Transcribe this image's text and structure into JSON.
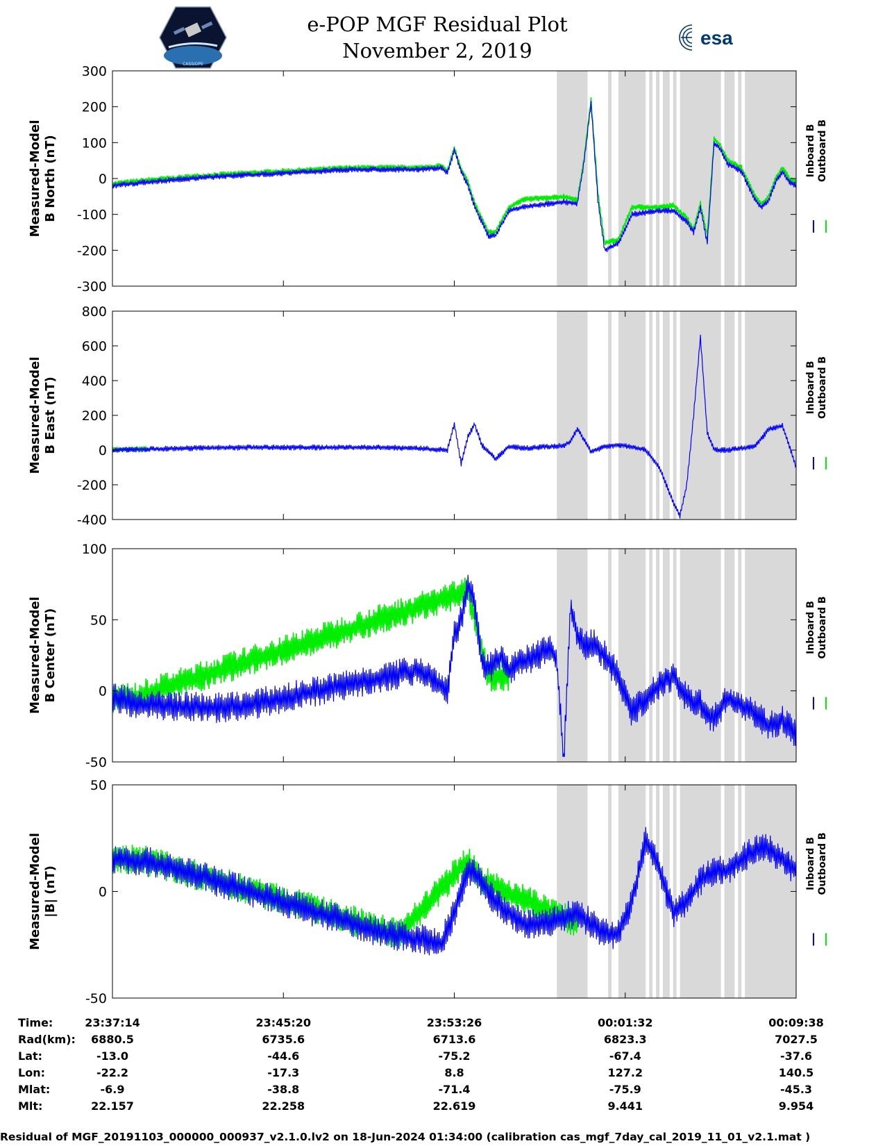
{
  "header": {
    "title": "e-POP MGF Residual Plot",
    "subtitle": "November 2, 2019",
    "logo_left_text": "CASSIOPE",
    "logo_right_text": "esa"
  },
  "colors": {
    "inboard": "#0000ff",
    "outboard": "#00ee00",
    "shade": "#d9d9d9"
  },
  "legend": {
    "inboard": "Inboard B",
    "outboard": "Outboard B",
    "placement": "right"
  },
  "chart_data": [
    {
      "type": "line",
      "ylabel": [
        "Measured-Model",
        "B North (nT)"
      ],
      "ylim": [
        -300,
        300
      ],
      "yticks": [
        300,
        200,
        100,
        0,
        -100,
        -200,
        -300
      ],
      "series": [
        {
          "name": "Inboard B",
          "x": [
            0,
            0.05,
            0.15,
            0.25,
            0.35,
            0.45,
            0.48,
            0.49,
            0.5,
            0.51,
            0.52,
            0.53,
            0.55,
            0.56,
            0.58,
            0.6,
            0.62,
            0.64,
            0.66,
            0.68,
            0.69,
            0.7,
            0.71,
            0.72,
            0.74,
            0.76,
            0.78,
            0.8,
            0.82,
            0.84,
            0.85,
            0.86,
            0.87,
            0.88,
            0.89,
            0.9,
            0.92,
            0.94,
            0.95,
            0.96,
            0.97,
            0.98,
            0.99,
            1
          ],
          "values": [
            -20,
            -10,
            5,
            15,
            25,
            25,
            30,
            15,
            80,
            20,
            -20,
            -80,
            -160,
            -160,
            -90,
            -80,
            -75,
            -70,
            -65,
            -70,
            50,
            210,
            -60,
            -200,
            -180,
            -100,
            -95,
            -90,
            -90,
            -120,
            -150,
            -80,
            -180,
            100,
            80,
            40,
            20,
            -60,
            -80,
            -60,
            -10,
            20,
            -10,
            -20
          ]
        },
        {
          "name": "Outboard B",
          "x": [
            0,
            0.05,
            0.15,
            0.25,
            0.35,
            0.45,
            0.48,
            0.49,
            0.5,
            0.51,
            0.52,
            0.53,
            0.55,
            0.56,
            0.58,
            0.6,
            0.62,
            0.64,
            0.66,
            0.68,
            0.69,
            0.7,
            0.71,
            0.72,
            0.74,
            0.76,
            0.78,
            0.8,
            0.82,
            0.84,
            0.85,
            0.86,
            0.87,
            0.88,
            0.89,
            0.9,
            0.92,
            0.94,
            0.95,
            0.96,
            0.97,
            0.98,
            0.99,
            1
          ],
          "values": [
            -15,
            -5,
            10,
            20,
            30,
            30,
            35,
            20,
            85,
            25,
            -10,
            -70,
            -150,
            -150,
            -80,
            -60,
            -55,
            -55,
            -50,
            -60,
            60,
            220,
            -40,
            -180,
            -170,
            -80,
            -80,
            -80,
            -75,
            -110,
            -140,
            -70,
            -160,
            110,
            90,
            50,
            30,
            -50,
            -70,
            -50,
            0,
            30,
            0,
            -10
          ]
        }
      ],
      "shading": [
        [
          0.65,
          0.695
        ],
        [
          0.725,
          0.73
        ],
        [
          0.74,
          0.78
        ],
        [
          0.785,
          0.79
        ],
        [
          0.795,
          0.8
        ],
        [
          0.805,
          0.815
        ],
        [
          0.82,
          0.825
        ],
        [
          0.83,
          0.89
        ],
        [
          0.895,
          0.91
        ],
        [
          0.915,
          0.92
        ],
        [
          0.925,
          1.0
        ]
      ]
    },
    {
      "type": "line",
      "ylabel": [
        "Measured-Model",
        "B East (nT)"
      ],
      "ylim": [
        -400,
        800
      ],
      "yticks": [
        800,
        600,
        400,
        200,
        0,
        -200,
        -400
      ],
      "series": [
        {
          "name": "Inboard B",
          "x": [
            0,
            0.1,
            0.2,
            0.3,
            0.4,
            0.45,
            0.49,
            0.5,
            0.51,
            0.52,
            0.53,
            0.54,
            0.56,
            0.58,
            0.6,
            0.62,
            0.64,
            0.66,
            0.67,
            0.68,
            0.69,
            0.7,
            0.72,
            0.74,
            0.76,
            0.78,
            0.8,
            0.82,
            0.83,
            0.84,
            0.85,
            0.86,
            0.87,
            0.88,
            0.9,
            0.92,
            0.94,
            0.96,
            0.98,
            1
          ],
          "values": [
            0,
            10,
            15,
            15,
            15,
            10,
            0,
            150,
            -80,
            80,
            150,
            30,
            -50,
            20,
            10,
            15,
            20,
            25,
            50,
            120,
            60,
            -10,
            20,
            30,
            20,
            0,
            -100,
            -300,
            -380,
            -200,
            200,
            650,
            100,
            0,
            0,
            10,
            20,
            120,
            140,
            -100
          ]
        },
        {
          "name": "Outboard B",
          "x": [
            0,
            0.05
          ],
          "values": [
            5,
            5
          ]
        }
      ],
      "shading": [
        [
          0.65,
          0.695
        ],
        [
          0.725,
          0.73
        ],
        [
          0.74,
          0.78
        ],
        [
          0.785,
          0.79
        ],
        [
          0.795,
          0.8
        ],
        [
          0.805,
          0.815
        ],
        [
          0.82,
          0.825
        ],
        [
          0.83,
          0.89
        ],
        [
          0.895,
          0.91
        ],
        [
          0.915,
          0.92
        ],
        [
          0.925,
          1.0
        ]
      ]
    },
    {
      "type": "line",
      "ylabel": [
        "Measured-Model",
        "B Center (nT)"
      ],
      "ylim": [
        -50,
        100
      ],
      "yticks": [
        100,
        50,
        0,
        -50
      ],
      "series": [
        {
          "name": "Inboard B",
          "x": [
            0,
            0.05,
            0.15,
            0.2,
            0.25,
            0.3,
            0.35,
            0.4,
            0.45,
            0.49,
            0.5,
            0.51,
            0.52,
            0.53,
            0.54,
            0.55,
            0.56,
            0.57,
            0.58,
            0.6,
            0.62,
            0.64,
            0.65,
            0.66,
            0.67,
            0.68,
            0.69,
            0.7,
            0.71,
            0.72,
            0.74,
            0.76,
            0.78,
            0.8,
            0.82,
            0.84,
            0.86,
            0.88,
            0.9,
            0.92,
            0.94,
            0.96,
            0.98,
            1
          ],
          "values": [
            -5,
            -10,
            -12,
            -10,
            -5,
            0,
            5,
            10,
            15,
            0,
            40,
            50,
            75,
            60,
            20,
            15,
            20,
            25,
            15,
            20,
            25,
            30,
            20,
            -50,
            60,
            40,
            30,
            35,
            30,
            25,
            10,
            -15,
            -5,
            5,
            10,
            -5,
            -10,
            -20,
            -5,
            -10,
            -15,
            -25,
            -20,
            -30
          ]
        },
        {
          "name": "Outboard B",
          "x": [
            0,
            0.03,
            0.52,
            0.55,
            0.58
          ],
          "values": [
            -5,
            -5,
            70,
            10,
            10
          ]
        }
      ],
      "shading": [
        [
          0.65,
          0.695
        ],
        [
          0.725,
          0.73
        ],
        [
          0.74,
          0.78
        ],
        [
          0.785,
          0.79
        ],
        [
          0.795,
          0.8
        ],
        [
          0.805,
          0.815
        ],
        [
          0.82,
          0.825
        ],
        [
          0.83,
          0.89
        ],
        [
          0.895,
          0.91
        ],
        [
          0.915,
          0.92
        ],
        [
          0.925,
          1.0
        ]
      ]
    },
    {
      "type": "line",
      "ylabel": [
        "Measured-Model",
        "|B| (nT)"
      ],
      "ylim": [
        -50,
        50
      ],
      "yticks": [
        50,
        0,
        -50
      ],
      "series": [
        {
          "name": "Inboard B",
          "x": [
            0,
            0.05,
            0.1,
            0.15,
            0.2,
            0.25,
            0.3,
            0.35,
            0.4,
            0.45,
            0.48,
            0.5,
            0.52,
            0.54,
            0.56,
            0.58,
            0.6,
            0.62,
            0.64,
            0.66,
            0.68,
            0.7,
            0.72,
            0.74,
            0.76,
            0.78,
            0.8,
            0.82,
            0.84,
            0.86,
            0.88,
            0.9,
            0.92,
            0.94,
            0.96,
            0.98,
            1
          ],
          "values": [
            15,
            14,
            10,
            5,
            0,
            -5,
            -10,
            -15,
            -20,
            -22,
            -25,
            -10,
            10,
            5,
            -5,
            -10,
            -15,
            -15,
            -15,
            -12,
            -10,
            -15,
            -20,
            -20,
            -5,
            25,
            10,
            -10,
            -5,
            5,
            10,
            10,
            15,
            20,
            20,
            15,
            10
          ]
        },
        {
          "name": "Outboard B",
          "x": [
            0,
            0.045,
            0.42,
            0.52,
            0.54,
            0.68
          ],
          "values": [
            15,
            15,
            -20,
            15,
            5,
            -15
          ]
        }
      ],
      "shading": [
        [
          0.65,
          0.695
        ],
        [
          0.725,
          0.73
        ],
        [
          0.74,
          0.78
        ],
        [
          0.785,
          0.79
        ],
        [
          0.795,
          0.8
        ],
        [
          0.805,
          0.815
        ],
        [
          0.82,
          0.825
        ],
        [
          0.83,
          0.89
        ],
        [
          0.895,
          0.91
        ],
        [
          0.915,
          0.92
        ],
        [
          0.925,
          1.0
        ]
      ]
    }
  ],
  "x_labels": [
    "23:37:14",
    "23:45:20",
    "23:53:26",
    "00:01:32",
    "00:09:38"
  ],
  "info_table": {
    "row_labels": [
      "Time:",
      "Rad(km):",
      "Lat:",
      "Lon:",
      "Mlat:",
      "Mlt:"
    ],
    "columns": [
      [
        "23:37:14",
        "6880.5",
        "-13.0",
        "-22.2",
        "-6.9",
        "22.157"
      ],
      [
        "23:45:20",
        "6735.6",
        "-44.6",
        "-17.3",
        "-38.8",
        "22.258"
      ],
      [
        "23:53:26",
        "6713.6",
        "-75.2",
        "8.8",
        "-71.4",
        "22.619"
      ],
      [
        "00:01:32",
        "6823.3",
        "-67.4",
        "127.2",
        "-75.9",
        "9.441"
      ],
      [
        "00:09:38",
        "7027.5",
        "-37.6",
        "140.5",
        "-45.3",
        "9.954"
      ]
    ]
  },
  "footer": "Residual of MGF_20191103_000000_000937_v2.1.0.lv2 on 18-Jun-2024 01:34:00 (calibration cas_mgf_7day_cal_2019_11_01_v2.1.mat )"
}
